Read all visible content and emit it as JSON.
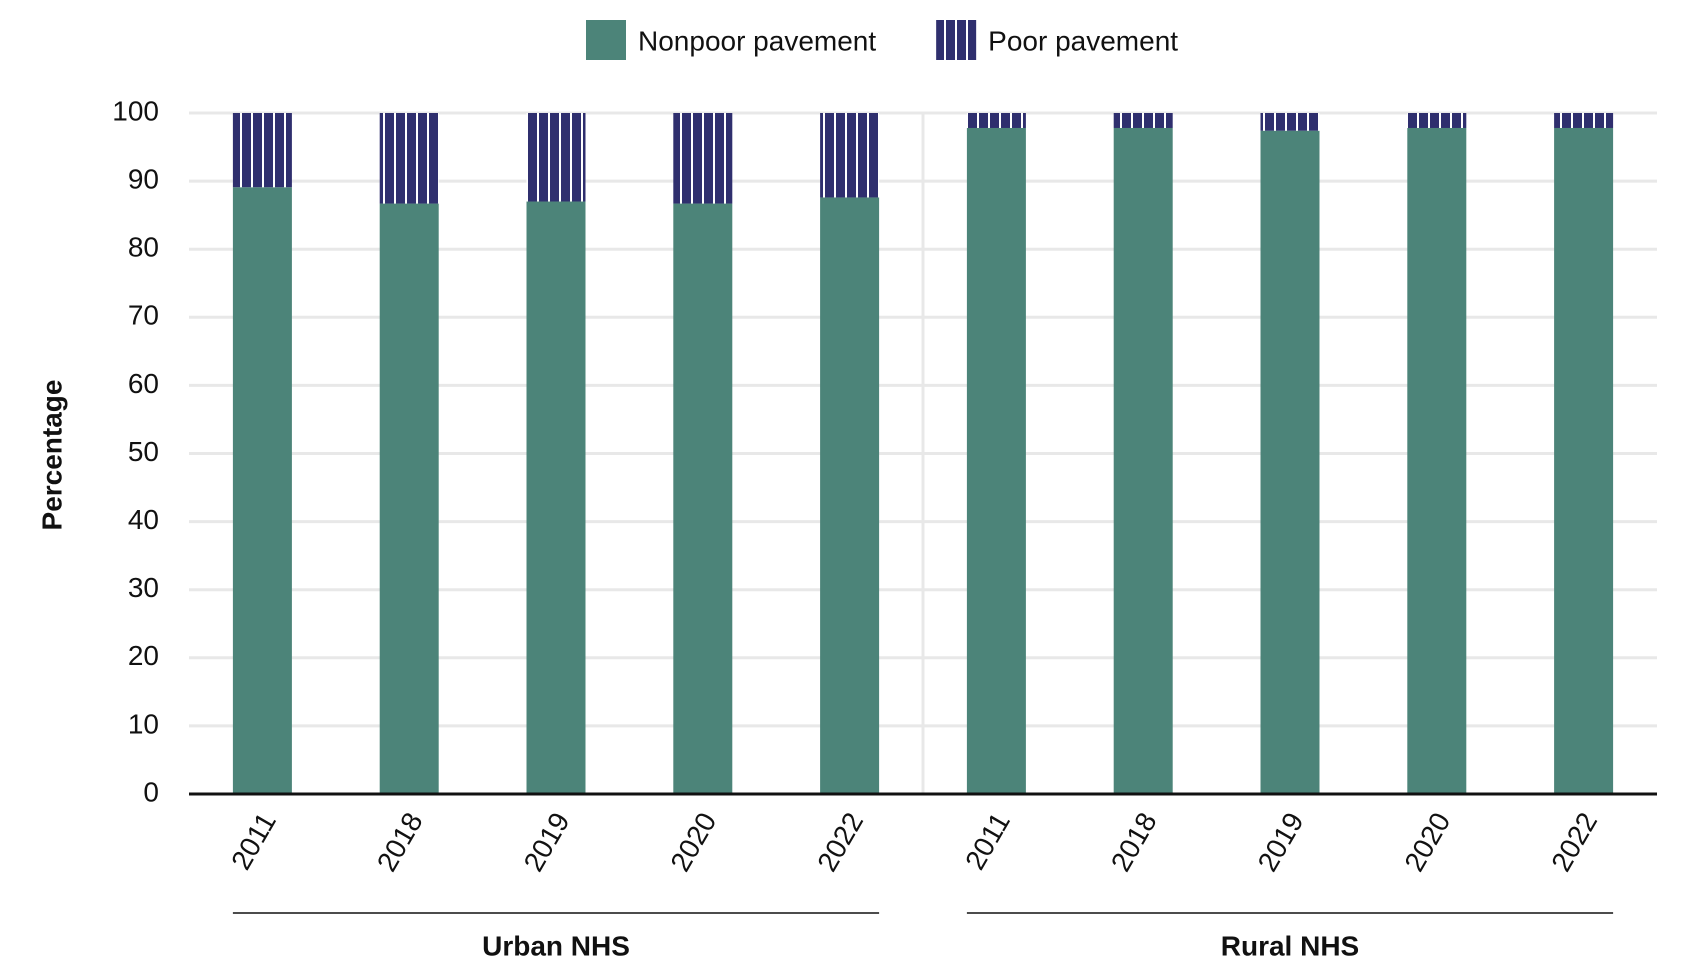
{
  "chart_data": {
    "type": "stacked_bar",
    "y_label": "Percentage",
    "groups": [
      {
        "label": "Urban NHS",
        "categories": [
          "2011",
          "2018",
          "2019",
          "2020",
          "2022"
        ]
      },
      {
        "label": "Rural NHS",
        "categories": [
          "2011",
          "2018",
          "2019",
          "2020",
          "2022"
        ]
      }
    ],
    "series": [
      {
        "name": "Nonpoor pavement",
        "color": "#4c8479",
        "values": [
          89.1,
          86.7,
          87.0,
          86.7,
          87.6,
          97.8,
          97.8,
          97.4,
          97.8,
          97.8
        ]
      },
      {
        "name": "Poor pavement",
        "color": "#2f2f6e",
        "pattern": "vertical-stripes",
        "values": [
          10.9,
          13.3,
          13.0,
          13.3,
          12.4,
          2.2,
          2.2,
          2.6,
          2.2,
          2.2
        ]
      }
    ],
    "ylim": [
      0,
      100
    ],
    "yticks": [
      0,
      10,
      20,
      30,
      40,
      50,
      60,
      70,
      80,
      90,
      100
    ],
    "grid": true,
    "legend": "top"
  }
}
